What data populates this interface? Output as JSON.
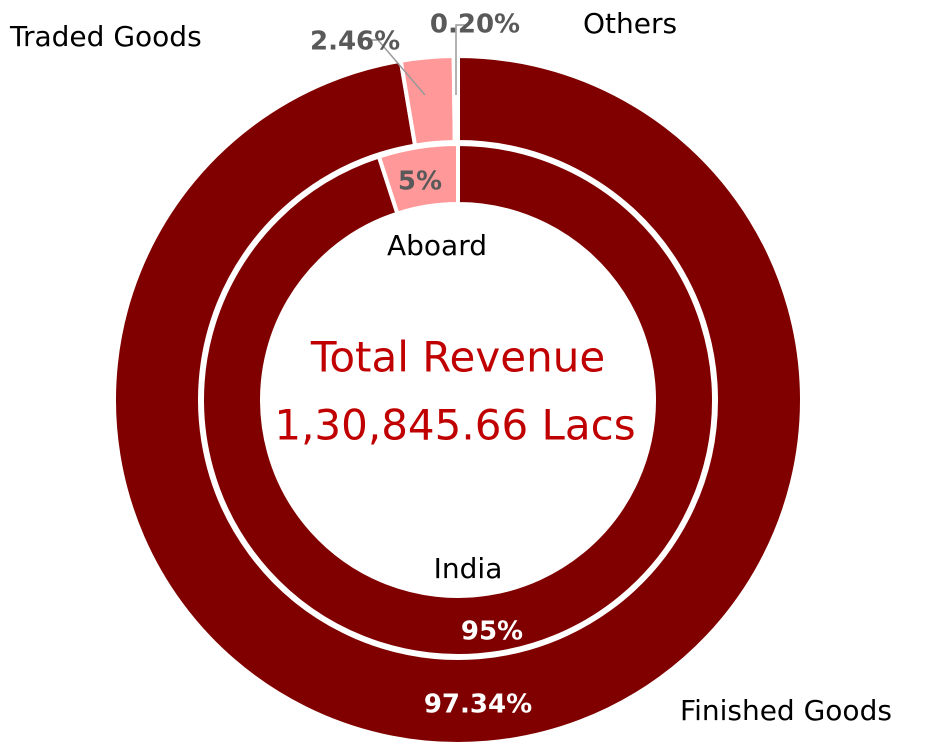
{
  "chart_data": [
    {
      "type": "donut",
      "categories": [
        "Finished Goods",
        "Traded Goods",
        "Others"
      ],
      "values": [
        97.34,
        2.46,
        0.2
      ],
      "value_labels": [
        "97.34%",
        "2.46%",
        "0.20%"
      ],
      "colors": [
        "#800000",
        "#ff9999",
        "#ff9999"
      ]
    },
    {
      "type": "donut",
      "categories": [
        "India",
        "Aboard"
      ],
      "values": [
        95,
        5
      ],
      "value_labels": [
        "95%",
        "5%"
      ],
      "colors": [
        "#800000",
        "#ff9999"
      ]
    }
  ],
  "annotations": [
    "Total Revenue",
    "1,30,845.66 Lacs"
  ]
}
